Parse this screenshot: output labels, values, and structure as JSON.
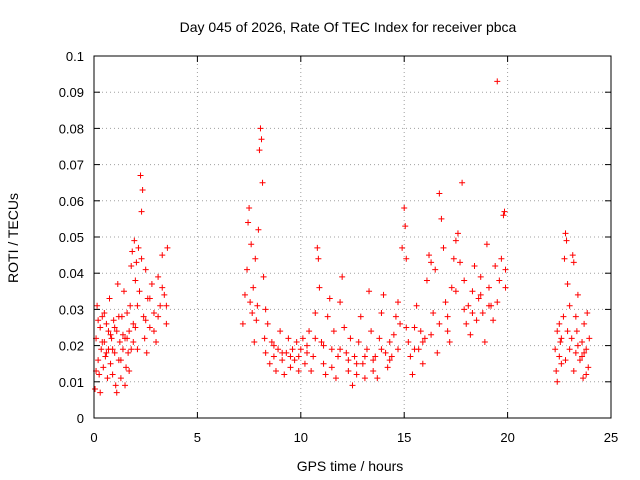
{
  "chart_data": {
    "type": "scatter",
    "title": "Day 045 of 2026, Rate Of TEC Index for receiver pbca",
    "xlabel": "GPS time / hours",
    "ylabel": "ROTI / TECUs",
    "xlim": [
      0,
      25
    ],
    "ylim": [
      0,
      0.1
    ],
    "x_ticks": [
      "0",
      "5",
      "10",
      "15",
      "20",
      "25"
    ],
    "y_ticks": [
      "0",
      "0.01",
      "0.02",
      "0.03",
      "0.04",
      "0.05",
      "0.06",
      "0.07",
      "0.08",
      "0.09",
      "0.1"
    ],
    "grid": true,
    "marker": "plus",
    "point_color": "#ff0000",
    "series": [
      {
        "points": [
          [
            0.05,
            0.008
          ],
          [
            0.1,
            0.022
          ],
          [
            0.15,
            0.031
          ],
          [
            0.2,
            0.016
          ],
          [
            0.25,
            0.012
          ],
          [
            0.3,
            0.025
          ],
          [
            0.35,
            0.019
          ],
          [
            0.4,
            0.028
          ],
          [
            0.45,
            0.014
          ],
          [
            0.5,
            0.021
          ],
          [
            0.55,
            0.017
          ],
          [
            0.6,
            0.026
          ],
          [
            0.65,
            0.011
          ],
          [
            0.7,
            0.019
          ],
          [
            0.75,
            0.033
          ],
          [
            0.8,
            0.015
          ],
          [
            0.85,
            0.022
          ],
          [
            0.9,
            0.012
          ],
          [
            0.95,
            0.027
          ],
          [
            1.0,
            0.018
          ],
          [
            1.05,
            0.009
          ],
          [
            1.1,
            0.024
          ],
          [
            1.15,
            0.037
          ],
          [
            1.2,
            0.016
          ],
          [
            1.25,
            0.021
          ],
          [
            1.3,
            0.011
          ],
          [
            1.35,
            0.028
          ],
          [
            1.4,
            0.019
          ],
          [
            1.45,
            0.035
          ],
          [
            1.5,
            0.022
          ],
          [
            1.55,
            0.014
          ],
          [
            1.6,
            0.029
          ],
          [
            1.65,
            0.018
          ],
          [
            1.7,
            0.024
          ],
          [
            1.75,
            0.031
          ],
          [
            1.8,
            0.042
          ],
          [
            1.85,
            0.046
          ],
          [
            1.9,
            0.026
          ],
          [
            1.95,
            0.049
          ],
          [
            2.0,
            0.038
          ],
          [
            2.05,
            0.043
          ],
          [
            2.1,
            0.019
          ],
          [
            2.15,
            0.047
          ],
          [
            2.2,
            0.035
          ],
          [
            2.25,
            0.067
          ],
          [
            2.3,
            0.057
          ],
          [
            2.35,
            0.063
          ],
          [
            2.4,
            0.028
          ],
          [
            2.45,
            0.022
          ],
          [
            2.5,
            0.041
          ],
          [
            2.55,
            0.018
          ],
          [
            2.6,
            0.033
          ],
          [
            2.7,
            0.025
          ],
          [
            2.8,
            0.037
          ],
          [
            2.9,
            0.029
          ],
          [
            3.0,
            0.021
          ],
          [
            3.1,
            0.039
          ],
          [
            3.2,
            0.031
          ],
          [
            3.3,
            0.045
          ],
          [
            3.4,
            0.034
          ],
          [
            3.5,
            0.026
          ],
          [
            3.55,
            0.047
          ],
          [
            0.1,
            0.013
          ],
          [
            0.3,
            0.007
          ],
          [
            0.5,
            0.029
          ],
          [
            0.7,
            0.024
          ],
          [
            0.9,
            0.019
          ],
          [
            1.1,
            0.007
          ],
          [
            1.3,
            0.016
          ],
          [
            1.5,
            0.009
          ],
          [
            1.7,
            0.013
          ],
          [
            1.9,
            0.021
          ],
          [
            2.1,
            0.031
          ],
          [
            2.3,
            0.044
          ],
          [
            2.5,
            0.027
          ],
          [
            2.7,
            0.033
          ],
          [
            2.9,
            0.024
          ],
          [
            3.1,
            0.028
          ],
          [
            3.3,
            0.036
          ],
          [
            3.5,
            0.031
          ],
          [
            0.2,
            0.027
          ],
          [
            0.4,
            0.021
          ],
          [
            0.6,
            0.018
          ],
          [
            0.8,
            0.023
          ],
          [
            1.0,
            0.025
          ],
          [
            1.2,
            0.028
          ],
          [
            1.4,
            0.023
          ],
          [
            1.6,
            0.022
          ],
          [
            1.8,
            0.019
          ],
          [
            2.0,
            0.025
          ],
          [
            7.2,
            0.026
          ],
          [
            7.3,
            0.034
          ],
          [
            7.4,
            0.041
          ],
          [
            7.45,
            0.054
          ],
          [
            7.5,
            0.058
          ],
          [
            7.55,
            0.032
          ],
          [
            7.6,
            0.048
          ],
          [
            7.65,
            0.029
          ],
          [
            7.7,
            0.036
          ],
          [
            7.75,
            0.021
          ],
          [
            7.8,
            0.044
          ],
          [
            7.85,
            0.027
          ],
          [
            7.9,
            0.031
          ],
          [
            7.95,
            0.052
          ],
          [
            8.0,
            0.074
          ],
          [
            8.05,
            0.08
          ],
          [
            8.1,
            0.077
          ],
          [
            8.15,
            0.065
          ],
          [
            8.2,
            0.039
          ],
          [
            8.25,
            0.022
          ],
          [
            8.3,
            0.018
          ],
          [
            8.4,
            0.026
          ],
          [
            8.5,
            0.015
          ],
          [
            8.6,
            0.021
          ],
          [
            8.7,
            0.017
          ],
          [
            8.8,
            0.013
          ],
          [
            8.9,
            0.019
          ],
          [
            9.0,
            0.024
          ],
          [
            9.1,
            0.016
          ],
          [
            9.2,
            0.012
          ],
          [
            9.3,
            0.018
          ],
          [
            9.4,
            0.022
          ],
          [
            9.5,
            0.014
          ],
          [
            9.6,
            0.019
          ],
          [
            9.7,
            0.016
          ],
          [
            9.8,
            0.021
          ],
          [
            9.9,
            0.013
          ],
          [
            10.0,
            0.019
          ],
          [
            10.1,
            0.022
          ],
          [
            10.2,
            0.015
          ],
          [
            10.3,
            0.018
          ],
          [
            10.4,
            0.024
          ],
          [
            10.5,
            0.013
          ],
          [
            10.6,
            0.017
          ],
          [
            10.7,
            0.029
          ],
          [
            10.8,
            0.047
          ],
          [
            10.85,
            0.044
          ],
          [
            10.9,
            0.036
          ],
          [
            11.0,
            0.021
          ],
          [
            11.1,
            0.015
          ],
          [
            11.2,
            0.012
          ],
          [
            11.3,
            0.028
          ],
          [
            11.4,
            0.033
          ],
          [
            11.5,
            0.019
          ],
          [
            11.6,
            0.024
          ],
          [
            11.7,
            0.011
          ],
          [
            11.8,
            0.017
          ],
          [
            11.9,
            0.032
          ],
          [
            12.0,
            0.039
          ],
          [
            12.1,
            0.025
          ],
          [
            12.2,
            0.018
          ],
          [
            12.3,
            0.013
          ],
          [
            12.4,
            0.022
          ],
          [
            12.5,
            0.009
          ],
          [
            12.6,
            0.017
          ],
          [
            12.7,
            0.012
          ],
          [
            12.8,
            0.021
          ],
          [
            12.9,
            0.028
          ],
          [
            13.0,
            0.015
          ],
          [
            13.1,
            0.011
          ],
          [
            13.2,
            0.019
          ],
          [
            13.3,
            0.035
          ],
          [
            13.4,
            0.024
          ],
          [
            13.5,
            0.013
          ],
          [
            13.6,
            0.017
          ],
          [
            13.7,
            0.011
          ],
          [
            13.8,
            0.022
          ],
          [
            13.9,
            0.029
          ],
          [
            14.0,
            0.034
          ],
          [
            14.1,
            0.018
          ],
          [
            14.2,
            0.014
          ],
          [
            14.3,
            0.021
          ],
          [
            14.4,
            0.017
          ],
          [
            14.5,
            0.023
          ],
          [
            14.6,
            0.028
          ],
          [
            14.7,
            0.032
          ],
          [
            14.8,
            0.026
          ],
          [
            14.9,
            0.047
          ],
          [
            15.0,
            0.058
          ],
          [
            15.05,
            0.053
          ],
          [
            15.1,
            0.044
          ],
          [
            15.2,
            0.021
          ],
          [
            15.3,
            0.017
          ],
          [
            15.4,
            0.012
          ],
          [
            15.5,
            0.025
          ],
          [
            15.6,
            0.031
          ],
          [
            15.7,
            0.019
          ],
          [
            15.8,
            0.024
          ],
          [
            15.9,
            0.015
          ],
          [
            16.0,
            0.022
          ],
          [
            16.1,
            0.038
          ],
          [
            16.2,
            0.045
          ],
          [
            16.3,
            0.043
          ],
          [
            16.4,
            0.029
          ],
          [
            16.5,
            0.041
          ],
          [
            16.6,
            0.018
          ],
          [
            16.7,
            0.062
          ],
          [
            16.8,
            0.055
          ],
          [
            16.9,
            0.047
          ],
          [
            17.0,
            0.032
          ],
          [
            17.1,
            0.028
          ],
          [
            17.2,
            0.021
          ],
          [
            17.3,
            0.036
          ],
          [
            17.4,
            0.044
          ],
          [
            17.5,
            0.049
          ],
          [
            17.6,
            0.051
          ],
          [
            17.7,
            0.043
          ],
          [
            17.8,
            0.065
          ],
          [
            17.9,
            0.038
          ],
          [
            18.0,
            0.026
          ],
          [
            18.1,
            0.031
          ],
          [
            18.2,
            0.023
          ],
          [
            18.3,
            0.035
          ],
          [
            18.4,
            0.042
          ],
          [
            18.5,
            0.027
          ],
          [
            18.6,
            0.033
          ],
          [
            18.7,
            0.039
          ],
          [
            18.8,
            0.029
          ],
          [
            18.9,
            0.021
          ],
          [
            19.0,
            0.048
          ],
          [
            19.1,
            0.036
          ],
          [
            19.2,
            0.031
          ],
          [
            19.3,
            0.027
          ],
          [
            19.4,
            0.042
          ],
          [
            19.5,
            0.093
          ],
          [
            19.6,
            0.038
          ],
          [
            19.7,
            0.044
          ],
          [
            19.8,
            0.056
          ],
          [
            19.85,
            0.057
          ],
          [
            19.9,
            0.041
          ],
          [
            8.3,
            0.03
          ],
          [
            8.7,
            0.02
          ],
          [
            9.1,
            0.018
          ],
          [
            9.5,
            0.017
          ],
          [
            9.9,
            0.017
          ],
          [
            10.3,
            0.02
          ],
          [
            10.7,
            0.022
          ],
          [
            11.1,
            0.02
          ],
          [
            11.5,
            0.014
          ],
          [
            11.9,
            0.019
          ],
          [
            12.3,
            0.016
          ],
          [
            12.7,
            0.015
          ],
          [
            13.1,
            0.017
          ],
          [
            13.5,
            0.016
          ],
          [
            13.9,
            0.019
          ],
          [
            14.3,
            0.016
          ],
          [
            14.7,
            0.019
          ],
          [
            15.1,
            0.025
          ],
          [
            15.5,
            0.019
          ],
          [
            15.9,
            0.021
          ],
          [
            16.3,
            0.023
          ],
          [
            16.7,
            0.026
          ],
          [
            17.1,
            0.024
          ],
          [
            17.5,
            0.035
          ],
          [
            17.9,
            0.03
          ],
          [
            18.3,
            0.029
          ],
          [
            18.7,
            0.034
          ],
          [
            19.1,
            0.031
          ],
          [
            19.5,
            0.032
          ],
          [
            19.9,
            0.036
          ],
          [
            22.3,
            0.019
          ],
          [
            22.35,
            0.013
          ],
          [
            22.4,
            0.024
          ],
          [
            22.5,
            0.017
          ],
          [
            22.55,
            0.021
          ],
          [
            22.6,
            0.015
          ],
          [
            22.7,
            0.028
          ],
          [
            22.75,
            0.044
          ],
          [
            22.8,
            0.051
          ],
          [
            22.85,
            0.049
          ],
          [
            22.9,
            0.037
          ],
          [
            23.0,
            0.031
          ],
          [
            23.1,
            0.022
          ],
          [
            23.15,
            0.045
          ],
          [
            23.2,
            0.043
          ],
          [
            23.3,
            0.018
          ],
          [
            23.35,
            0.024
          ],
          [
            23.4,
            0.034
          ],
          [
            23.5,
            0.016
          ],
          [
            23.6,
            0.021
          ],
          [
            23.65,
            0.011
          ],
          [
            23.7,
            0.026
          ],
          [
            23.8,
            0.019
          ],
          [
            23.85,
            0.029
          ],
          [
            23.9,
            0.014
          ],
          [
            23.95,
            0.022
          ],
          [
            22.4,
            0.01
          ],
          [
            22.6,
            0.022
          ],
          [
            22.8,
            0.016
          ],
          [
            23.0,
            0.019
          ],
          [
            23.2,
            0.013
          ],
          [
            23.4,
            0.02
          ],
          [
            23.6,
            0.017
          ],
          [
            23.8,
            0.012
          ],
          [
            22.5,
            0.026
          ],
          [
            22.9,
            0.024
          ],
          [
            23.3,
            0.028
          ],
          [
            23.7,
            0.018
          ]
        ]
      }
    ]
  }
}
